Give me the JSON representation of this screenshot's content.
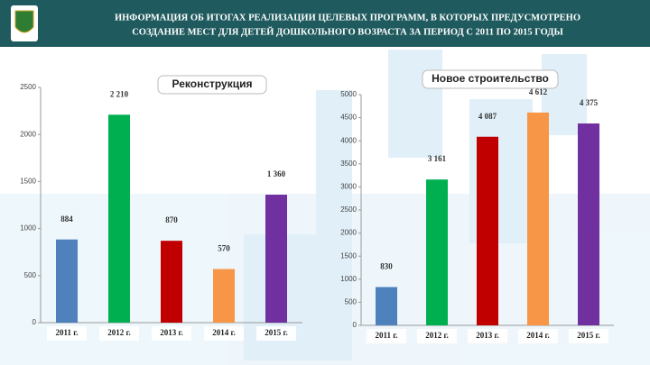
{
  "header": {
    "title_line1": "ИНФОРМАЦИЯ ОБ ИТОГАХ РЕАЛИЗАЦИИ ЦЕЛЕВЫХ ПРОГРАММ, В КОТОРЫХ ПРЕДУСМОТРЕНО",
    "title_line2": "СОЗДАНИЕ МЕСТ ДЛЯ ДЕТЕЙ ДОШКОЛЬНОГО ВОЗРАСТА ЗА ПЕРИОД С 2011 ПО 2015 ГОДЫ"
  },
  "chart_data": [
    {
      "type": "bar",
      "title": "Реконструкция",
      "categories": [
        "2011 г.",
        "2012 г.",
        "2013 г.",
        "2014 г.",
        "2015 г."
      ],
      "values": [
        884,
        2210,
        870,
        570,
        1360
      ],
      "value_labels": [
        "884",
        "2 210",
        "870",
        "570",
        "1 360"
      ],
      "colors": [
        "#4f81bd",
        "#00b050",
        "#c00000",
        "#f79646",
        "#7030a0"
      ],
      "ylim": [
        0,
        2500
      ],
      "yticks": [
        0,
        500,
        1000,
        1500,
        2000,
        2500
      ]
    },
    {
      "type": "bar",
      "title": "Новое строительство",
      "categories": [
        "2011 г.",
        "2012 г.",
        "2013 г.",
        "2014 г.",
        "2015 г."
      ],
      "values": [
        830,
        3161,
        4087,
        4612,
        4375
      ],
      "value_labels": [
        "830",
        "3 161",
        "4 087",
        "4 612",
        "4 375"
      ],
      "colors": [
        "#4f81bd",
        "#00b050",
        "#c00000",
        "#f79646",
        "#7030a0"
      ],
      "ylim": [
        0,
        5000
      ],
      "yticks": [
        0,
        500,
        1000,
        1500,
        2000,
        2500,
        3000,
        3500,
        4000,
        4500,
        5000
      ]
    }
  ]
}
